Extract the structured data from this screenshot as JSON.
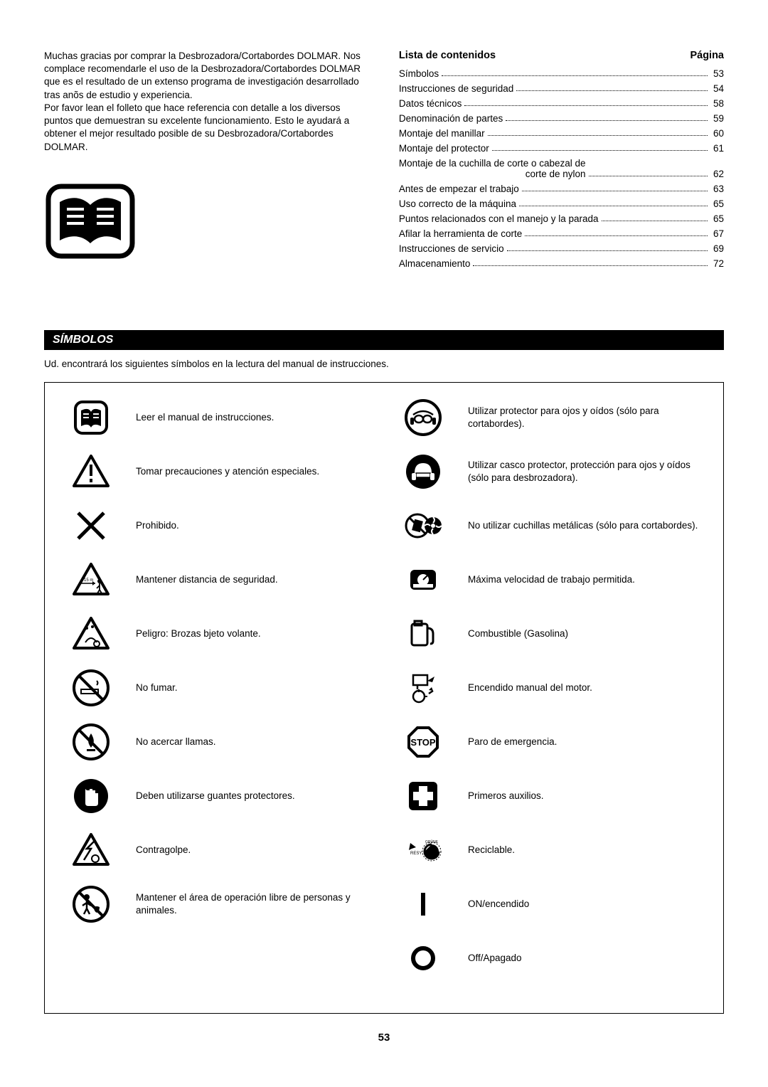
{
  "intro": {
    "para1": "Muchas gracias por comprar la Desbrozadora/Cortabordes DOLMAR. Nos complace recomendarle el uso de la Desbrozadora/Cortabordes DOLMAR que es el resultado de un extenso programa de investigación desarrollado tras anõs de estudio y experiencia.",
    "para2": "Por favor lean el folleto que hace referencia con detalle a los diversos puntos que demuestran su excelente funcionamiento. Esto le ayudará a obtener el mejor resultado posible de su Desbrozadora/Cortabordes DOLMAR."
  },
  "toc": {
    "head_left": "Lista de contenidos",
    "head_right": "Página",
    "rows": [
      {
        "label": "Símbolos",
        "page": "53"
      },
      {
        "label": "Instrucciones de seguridad",
        "page": "54"
      },
      {
        "label": "Datos técnicos",
        "page": "58"
      },
      {
        "label": "Denominación de partes",
        "page": "59"
      },
      {
        "label": "Montaje del manillar",
        "page": "60"
      },
      {
        "label": "Montaje del protector",
        "page": "61"
      },
      {
        "label": "Montaje de la cuchilla de corte o cabezal de",
        "sub": "corte de nylon",
        "page": "62"
      },
      {
        "label": "Antes de empezar el trabajo",
        "page": "63"
      },
      {
        "label": "Uso correcto de la máquina",
        "page": "65"
      },
      {
        "label": "Puntos relacionados con el manejo y la parada",
        "page": "65"
      },
      {
        "label": "Afilar la herramienta de corte",
        "page": "67"
      },
      {
        "label": "Instrucciones de servicio",
        "page": "69"
      },
      {
        "label": "Almacenamiento",
        "page": "72"
      }
    ]
  },
  "section": {
    "title": "SÍMBOLOS",
    "intro": "Ud. encontrará los siguientes símbolos en la lectura del manual de instrucciones."
  },
  "symbols_left": [
    {
      "text": "Leer el manual de instrucciones."
    },
    {
      "text": "Tomar precauciones y atención especiales."
    },
    {
      "text": "Prohibido."
    },
    {
      "text": "Mantener distancia de seguridad."
    },
    {
      "text": "Peligro: Brozas bjeto volante."
    },
    {
      "text": "No fumar."
    },
    {
      "text": "No acercar llamas."
    },
    {
      "text": "Deben utilizarse guantes protectores."
    },
    {
      "text": "Contragolpe."
    },
    {
      "text": "Mantener el área de operación libre de personas y animales."
    }
  ],
  "symbols_right": [
    {
      "text": "Utilizar protector para ojos y oídos (sólo para cortabordes)."
    },
    {
      "text": "Utilizar casco protector, protección para ojos y oídos (sólo para desbrozadora)."
    },
    {
      "text": "No utilizar cuchillas metálicas (sólo para cortabordes)."
    },
    {
      "text": "Máxima velocidad de trabajo permitida."
    },
    {
      "text": "Combustible (Gasolina)"
    },
    {
      "text": "Encendido manual del motor."
    },
    {
      "text": "Paro de emergencia."
    },
    {
      "text": "Primeros auxilios."
    },
    {
      "text": "Reciclable."
    },
    {
      "text": "ON/encendido"
    },
    {
      "text": "Off/Apagado"
    }
  ],
  "page_number": "53"
}
